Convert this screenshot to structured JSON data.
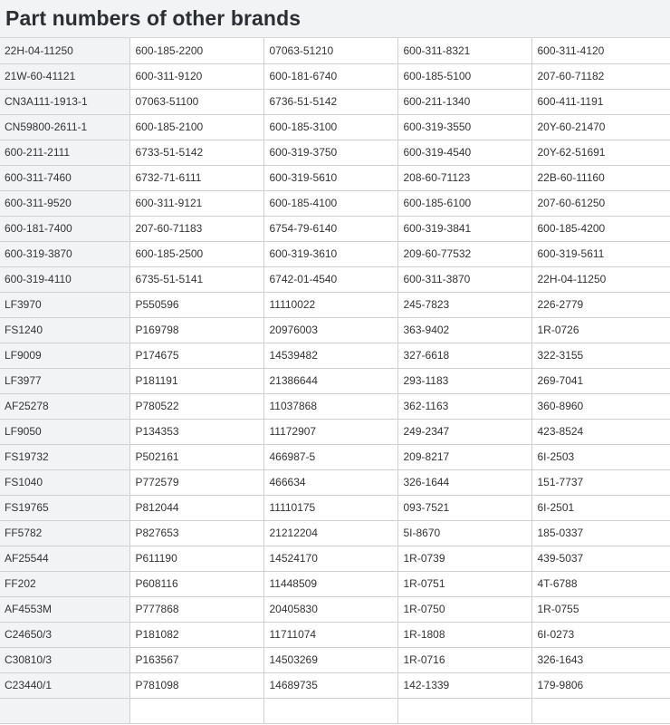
{
  "page": {
    "title": "Part numbers of other brands"
  },
  "table": {
    "rows": [
      [
        "22H-04-11250",
        "600-185-2200",
        "07063-51210",
        "600-311-8321",
        "600-311-4120"
      ],
      [
        "21W-60-41121",
        "600-311-9120",
        "600-181-6740",
        "600-185-5100",
        "207-60-71182"
      ],
      [
        "CN3A111-1913-1",
        "07063-51100",
        "6736-51-5142",
        "600-211-1340",
        "600-411-1191"
      ],
      [
        "CN59800-2611-1",
        "600-185-2100",
        "600-185-3100",
        "600-319-3550",
        "20Y-60-21470"
      ],
      [
        "600-211-2111",
        "6733-51-5142",
        "600-319-3750",
        "600-319-4540",
        "20Y-62-51691"
      ],
      [
        "600-311-7460",
        "6732-71-6111",
        "600-319-5610",
        "208-60-71123",
        "22B-60-11160"
      ],
      [
        "600-311-9520",
        "600-311-9121",
        "600-185-4100",
        "600-185-6100",
        "207-60-61250"
      ],
      [
        "600-181-7400",
        "207-60-71183",
        "6754-79-6140",
        "600-319-3841",
        "600-185-4200"
      ],
      [
        "600-319-3870",
        "600-185-2500",
        "600-319-3610",
        "209-60-77532",
        "600-319-5611"
      ],
      [
        "600-319-4110",
        "6735-51-5141",
        "6742-01-4540",
        "600-311-3870",
        "22H-04-11250"
      ],
      [
        "LF3970",
        "P550596",
        "11110022",
        "245-7823",
        "226-2779"
      ],
      [
        "FS1240",
        "P169798",
        "20976003",
        "363-9402",
        "1R-0726"
      ],
      [
        "LF9009",
        "P174675",
        "14539482",
        "327-6618",
        "322-3155"
      ],
      [
        "LF3977",
        "P181191",
        "21386644",
        "293-1183",
        "269-7041"
      ],
      [
        "AF25278",
        "P780522",
        "11037868",
        "362-1163",
        "360-8960"
      ],
      [
        "LF9050",
        "P134353",
        "11172907",
        "249-2347",
        "423-8524"
      ],
      [
        "FS19732",
        "P502161",
        "466987-5",
        "209-8217",
        "6I-2503"
      ],
      [
        "FS1040",
        "P772579",
        "466634",
        "326-1644",
        "151-7737"
      ],
      [
        "FS19765",
        "P812044",
        "11110175",
        "093-7521",
        "6I-2501"
      ],
      [
        "FF5782",
        "P827653",
        "21212204",
        "5I-8670",
        "185-0337"
      ],
      [
        "AF25544",
        "P611190",
        "14524170",
        "1R-0739",
        "439-5037"
      ],
      [
        "FF202",
        "P608116",
        "11448509",
        "1R-0751",
        "4T-6788"
      ],
      [
        "AF4553M",
        "P777868",
        "20405830",
        "1R-0750",
        "1R-0755"
      ],
      [
        "C24650/3",
        "P181082",
        "11711074",
        "1R-1808",
        "6I-0273"
      ],
      [
        "C30810/3",
        "P163567",
        "14503269",
        "1R-0716",
        "326-1643"
      ],
      [
        "C23440/1",
        "P781098",
        "14689735",
        "142-1339",
        "179-9806"
      ],
      [
        "",
        "",
        "",
        "",
        ""
      ]
    ]
  }
}
